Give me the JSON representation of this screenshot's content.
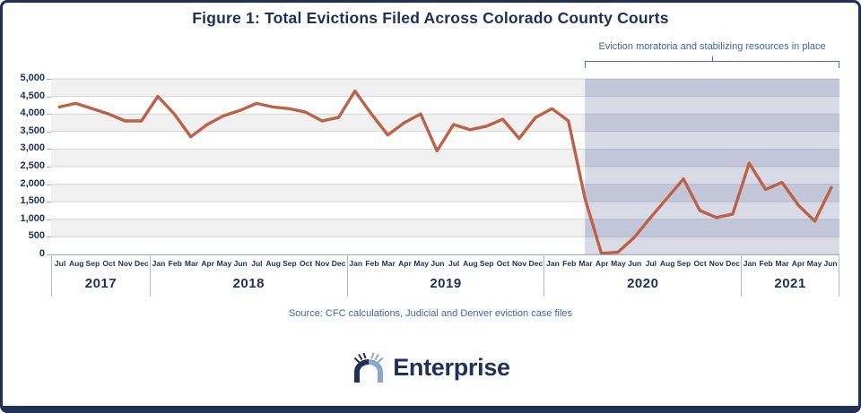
{
  "frame": {
    "title": "Figure 1: Total Evictions Filed Across Colorado County Courts"
  },
  "annotation": {
    "label": "Eviction moratoria and stabilizing resources in place"
  },
  "source": {
    "text": "Source: CFC calculations, Judicial and Denver eviction case files"
  },
  "logo": {
    "text": "Enterprise"
  },
  "colors": {
    "navy": "#203157",
    "steel_blue": "#3E64AD",
    "line": "#BC6248",
    "band_gray": "#f0f0f1",
    "band_white": "#ffffff",
    "shade_dark": "#c3c5d9",
    "shade_light": "#d8dae6",
    "gridline": "rgba(105,112,140,0.25)",
    "axis_border": "#b3b9cf"
  },
  "chart_data": {
    "type": "line",
    "title": "Figure 1: Total Evictions Filed Across Colorado County Courts",
    "xlabel": "",
    "ylabel": "",
    "ylim": [
      0,
      5000
    ],
    "y_tick_step": 500,
    "y_ticks": [
      "5,000",
      "4,500",
      "4,000",
      "3,500",
      "3,000",
      "2,500",
      "2,000",
      "1,500",
      "1,000",
      "500",
      "0"
    ],
    "grid": true,
    "series_name": "Total evictions filed",
    "x_groups": [
      {
        "year": "2017",
        "months": [
          "Jul",
          "Aug",
          "Sep",
          "Oct",
          "Nov",
          "Dec"
        ]
      },
      {
        "year": "2018",
        "months": [
          "Jan",
          "Feb",
          "Mar",
          "Apr",
          "May",
          "Jun",
          "Jul",
          "Aug",
          "Sep",
          "Oct",
          "Nov",
          "Dec"
        ]
      },
      {
        "year": "2019",
        "months": [
          "Jan",
          "Feb",
          "Mar",
          "Apr",
          "May",
          "Jun",
          "Jul",
          "Aug",
          "Sep",
          "Oct",
          "Nov",
          "Dec"
        ]
      },
      {
        "year": "2020",
        "months": [
          "Jan",
          "Feb",
          "Mar",
          "Apr",
          "May",
          "Jun",
          "Jul",
          "Aug",
          "Sep",
          "Oct",
          "Nov",
          "Dec"
        ]
      },
      {
        "year": "2021",
        "months": [
          "Jan",
          "Feb",
          "Mar",
          "Apr",
          "May",
          "Jun"
        ]
      }
    ],
    "values": [
      4200,
      4300,
      4150,
      4000,
      3800,
      3800,
      4500,
      4000,
      3350,
      3700,
      3950,
      4100,
      4300,
      4200,
      4150,
      4050,
      3800,
      3900,
      4650,
      4000,
      3400,
      3750,
      4000,
      2950,
      3700,
      3550,
      3650,
      3850,
      3300,
      3900,
      4150,
      3800,
      1600,
      30,
      60,
      480,
      1050,
      1600,
      2150,
      1250,
      1050,
      1150,
      2600,
      1850,
      2050,
      1400,
      950,
      1900
    ],
    "shaded_region": {
      "label": "Eviction moratoria and stabilizing resources in place",
      "start_month": "Mar 2020",
      "end_month": "Jun 2021",
      "start_index": 32
    },
    "line_color": "#BC6248"
  }
}
